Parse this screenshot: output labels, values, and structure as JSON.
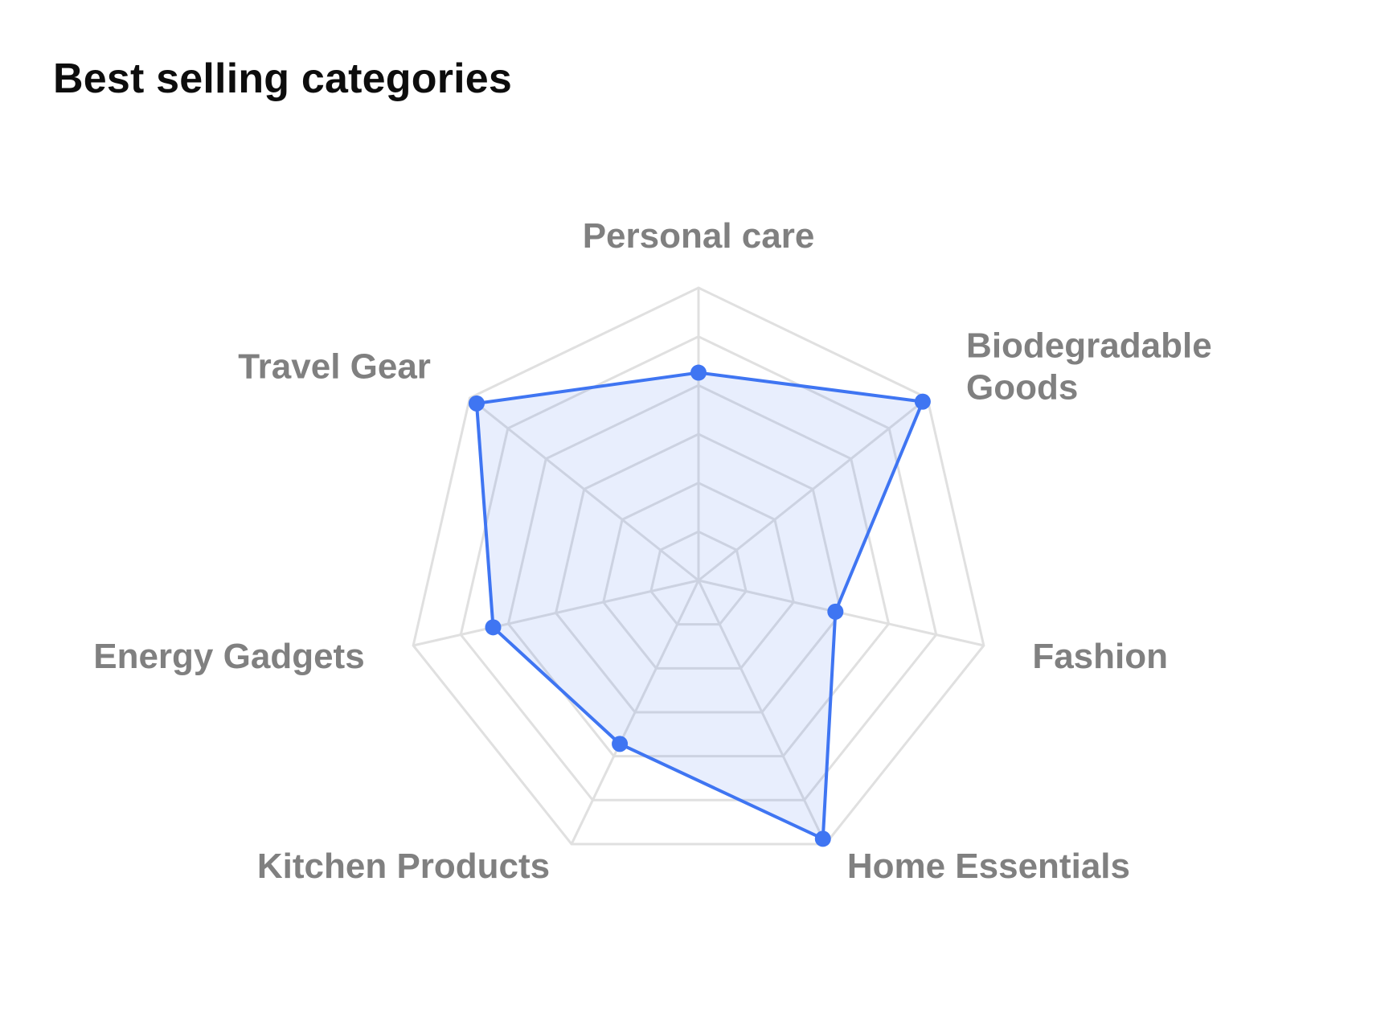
{
  "chart_data": {
    "type": "radar",
    "title": "Best selling categories",
    "categories": [
      "Personal care",
      "Biodegradable Goods",
      "Fashion",
      "Home Essentials",
      "Kitchen Products",
      "Energy Gadgets",
      "Travel Gear"
    ],
    "label_lines": [
      [
        "Personal care"
      ],
      [
        "Biodegradable",
        "Goods"
      ],
      [
        "Fashion"
      ],
      [
        "Home Essentials"
      ],
      [
        "Kitchen Products"
      ],
      [
        "Energy Gadgets"
      ],
      [
        "Travel Gear"
      ]
    ],
    "series": [
      {
        "values": [
          71,
          98,
          48,
          98,
          62,
          72,
          97
        ]
      }
    ],
    "rlim": [
      0,
      100
    ],
    "grid": true,
    "legend": "none",
    "colors": {
      "line": "#3f75f2",
      "fill": "#3f75f2",
      "grid": "#e0e0e0",
      "label": "#808080"
    }
  }
}
